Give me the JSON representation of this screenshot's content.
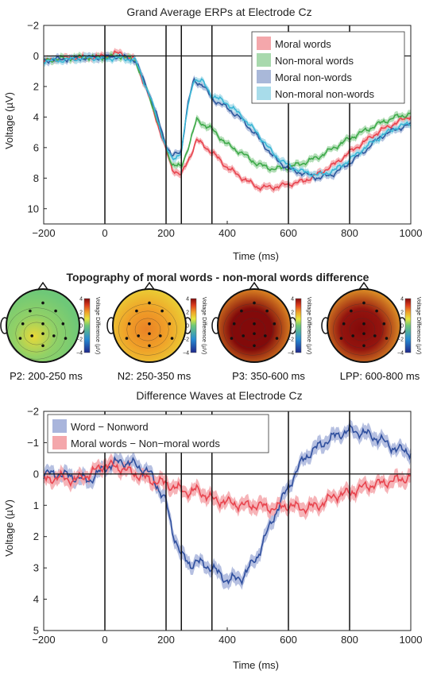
{
  "chart_data": [
    {
      "type": "line",
      "title": "Grand Average ERPs at Electrode Cz",
      "xlabel": "Time (ms)",
      "ylabel": "Voltage (µV)",
      "xlim": [
        -200,
        1000
      ],
      "ylim": [
        -2,
        11
      ],
      "y_inverted": true,
      "xticks": [
        -200,
        0,
        200,
        400,
        600,
        800,
        1000
      ],
      "yticks": [
        -2,
        0,
        2,
        4,
        6,
        8,
        10
      ],
      "vlines": [
        0,
        200,
        250,
        350,
        600,
        800
      ],
      "legend_position": "top-right",
      "series": [
        {
          "name": "Moral words",
          "color": "#e8454f",
          "band": "#f4a7ab",
          "x": [
            -200,
            -150,
            -100,
            -50,
            0,
            50,
            100,
            150,
            200,
            220,
            250,
            280,
            300,
            350,
            400,
            450,
            500,
            550,
            600,
            650,
            700,
            750,
            800,
            850,
            900,
            950,
            1000
          ],
          "y": [
            0.3,
            0.2,
            0.1,
            0.1,
            0.0,
            -0.2,
            0.3,
            3.0,
            6.2,
            7.4,
            7.8,
            6.5,
            5.5,
            6.3,
            7.3,
            8.0,
            8.6,
            8.6,
            8.4,
            8.2,
            7.7,
            7.1,
            6.3,
            5.6,
            4.9,
            4.4,
            3.9
          ]
        },
        {
          "name": "Non-moral words",
          "color": "#3faa4a",
          "band": "#a8d9ad",
          "x": [
            -200,
            -150,
            -100,
            -50,
            0,
            50,
            100,
            150,
            200,
            220,
            250,
            280,
            300,
            350,
            400,
            450,
            500,
            550,
            600,
            650,
            700,
            750,
            800,
            850,
            900,
            950,
            1000
          ],
          "y": [
            0.3,
            0.2,
            0.1,
            0.1,
            0.1,
            0.0,
            0.3,
            2.9,
            6.0,
            7.1,
            7.3,
            5.5,
            4.2,
            4.8,
            5.8,
            6.4,
            7.1,
            7.4,
            7.3,
            7.0,
            6.6,
            6.0,
            5.4,
            4.9,
            4.4,
            4.0,
            3.8
          ]
        },
        {
          "name": "Moral non-words",
          "color": "#2f5a9e",
          "band": "#a9b8d9",
          "x": [
            -200,
            -150,
            -100,
            -50,
            0,
            50,
            100,
            150,
            200,
            220,
            250,
            270,
            290,
            320,
            350,
            400,
            450,
            500,
            550,
            600,
            650,
            700,
            750,
            800,
            850,
            900,
            950,
            1000
          ],
          "y": [
            0.3,
            0.2,
            0.2,
            0.1,
            0.1,
            0.0,
            0.3,
            2.7,
            5.8,
            6.6,
            6.2,
            3.3,
            1.6,
            1.9,
            2.8,
            3.4,
            4.2,
            5.3,
            6.6,
            7.4,
            7.7,
            8.0,
            7.7,
            7.0,
            6.2,
            5.3,
            4.8,
            4.5
          ]
        },
        {
          "name": "Non-moral non-words",
          "color": "#3ab6d6",
          "band": "#a8dcea",
          "x": [
            -200,
            -150,
            -100,
            -50,
            0,
            50,
            100,
            150,
            200,
            220,
            250,
            270,
            290,
            320,
            350,
            400,
            450,
            500,
            550,
            600,
            650,
            700,
            750,
            800,
            850,
            900,
            950,
            1000
          ],
          "y": [
            0.3,
            0.3,
            0.2,
            0.1,
            0.2,
            0.1,
            0.3,
            2.8,
            6.0,
            6.8,
            6.3,
            3.5,
            1.5,
            1.7,
            2.6,
            3.1,
            4.0,
            5.1,
            6.4,
            7.2,
            7.6,
            7.8,
            7.5,
            6.8,
            6.0,
            5.3,
            4.7,
            4.4
          ]
        }
      ]
    },
    {
      "type": "heatmap",
      "title": "Topography of moral words - non-moral words difference",
      "colorbar_label": "Voltage Difference (µV)",
      "colorbar_ticks": [
        -4,
        -2,
        0,
        2,
        4
      ],
      "colorbar_range": [
        -4,
        4
      ],
      "maps": [
        {
          "label": "P2: 200-250 ms",
          "center_value": 0.3,
          "edge_value": 0.0,
          "peak_value": 1.2
        },
        {
          "label": "N2: 250-350 ms",
          "center_value": 2.0,
          "edge_value": 1.2,
          "peak_value": 2.3
        },
        {
          "label": "P3: 350-600 ms",
          "center_value": 4.0,
          "edge_value": 2.0,
          "peak_value": 4.0
        },
        {
          "label": "LPP: 600-800 ms",
          "center_value": 3.8,
          "edge_value": 1.8,
          "peak_value": 4.0
        }
      ]
    },
    {
      "type": "line",
      "title": "Difference Waves at Electrode Cz",
      "xlabel": "Time (ms)",
      "ylabel": "Voltage (µV)",
      "xlim": [
        -200,
        1000
      ],
      "ylim": [
        -2,
        5
      ],
      "y_inverted": true,
      "xticks": [
        -200,
        0,
        200,
        400,
        600,
        800,
        1000
      ],
      "yticks": [
        -2,
        -1,
        0,
        1,
        2,
        3,
        4,
        5
      ],
      "vlines": [
        0,
        200,
        250,
        350,
        600,
        800
      ],
      "legend_position": "top-left",
      "series": [
        {
          "name": "Word − Nonword",
          "color": "#2f4f9e",
          "band": "#a9b5dc",
          "x": [
            -200,
            -150,
            -100,
            -50,
            0,
            50,
            100,
            150,
            200,
            220,
            250,
            280,
            300,
            350,
            400,
            450,
            500,
            550,
            600,
            650,
            700,
            750,
            800,
            850,
            900,
            950,
            1000
          ],
          "y": [
            0.0,
            0.0,
            0.1,
            0.2,
            -0.2,
            -0.4,
            -0.3,
            0.0,
            0.9,
            1.8,
            2.6,
            2.9,
            2.8,
            3.0,
            3.4,
            3.3,
            2.6,
            1.4,
            0.4,
            -0.5,
            -0.9,
            -1.2,
            -1.4,
            -1.3,
            -1.1,
            -0.8,
            -0.7
          ]
        },
        {
          "name": "Moral words − Non−moral words",
          "color": "#e8454f",
          "band": "#f4a7ab",
          "x": [
            -200,
            -150,
            -100,
            -50,
            0,
            50,
            100,
            150,
            200,
            220,
            250,
            280,
            300,
            350,
            400,
            450,
            500,
            550,
            600,
            650,
            700,
            750,
            800,
            850,
            900,
            950,
            1000
          ],
          "y": [
            0.2,
            0.1,
            0.2,
            0.0,
            -0.3,
            -0.2,
            0.0,
            0.2,
            0.3,
            0.4,
            0.5,
            0.6,
            0.5,
            0.8,
            0.9,
            1.0,
            1.0,
            1.1,
            1.0,
            1.1,
            1.0,
            0.7,
            0.6,
            0.4,
            0.3,
            0.2,
            0.1
          ]
        }
      ]
    }
  ]
}
